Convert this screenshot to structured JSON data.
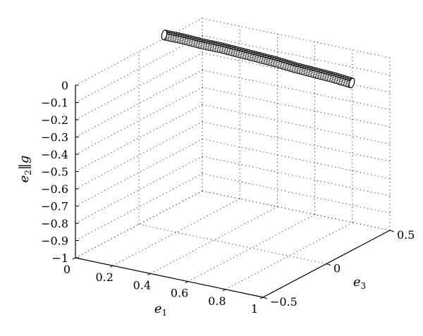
{
  "chart_data": {
    "type": "line",
    "style": "3d-tube",
    "grid": true,
    "x_axis": {
      "label": "e1",
      "range": [
        0,
        1
      ],
      "ticks": [
        0,
        0.2,
        0.4,
        0.6,
        0.8,
        1
      ],
      "tick_labels": [
        "0",
        "0.2",
        "0.4",
        "0.6",
        "0.8",
        "1"
      ]
    },
    "y_axis": {
      "label": "e3",
      "range": [
        -0.5,
        0.5
      ],
      "ticks": [
        -0.5,
        0,
        0.5
      ],
      "tick_labels": [
        "−0.5",
        "0",
        "0.5"
      ]
    },
    "z_axis": {
      "label": "e2‖g",
      "range": [
        -1,
        0
      ],
      "ticks": [
        0,
        -0.1,
        -0.2,
        -0.3,
        -0.4,
        -0.5,
        -0.6,
        -0.7,
        -0.8,
        -0.9,
        -1
      ],
      "tick_labels": [
        "0",
        "−0.1",
        "−0.2",
        "−0.3",
        "−0.4",
        "−0.5",
        "−0.6",
        "−0.7",
        "−0.8",
        "−0.9",
        "−1"
      ]
    },
    "series": [
      {
        "x": [
          0.0,
          0.1,
          0.2,
          0.3,
          0.4,
          0.5,
          0.6,
          0.7,
          0.8,
          0.9,
          1.0
        ],
        "y": [
          0.2,
          0.2,
          0.2,
          0.2,
          0.2,
          0.2,
          0.2,
          0.2,
          0.2,
          0.2,
          0.2
        ],
        "z": [
          0.02,
          0.02,
          0.015,
          0.015,
          0.01,
          0.005,
          0.0,
          -0.01,
          -0.015,
          -0.02,
          -0.03
        ]
      }
    ]
  }
}
